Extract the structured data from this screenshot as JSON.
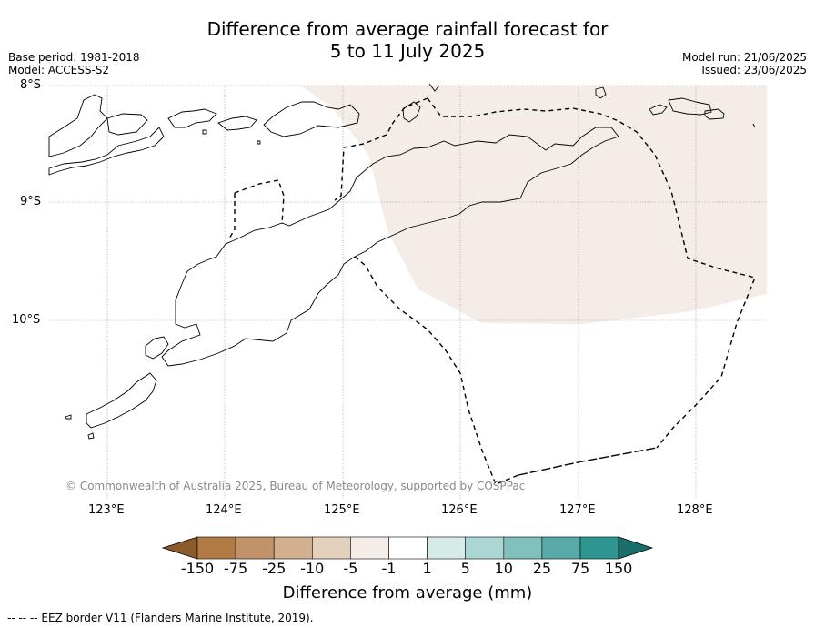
{
  "title": {
    "line1": "Difference from average rainfall forecast for",
    "line2": "5 to 11 July 2025"
  },
  "meta": {
    "base_period": "Base period: 1981-2018",
    "model": "Model: ACCESS-S2",
    "model_run": "Model run: 21/06/2025",
    "issued": "Issued: 23/06/2025"
  },
  "map": {
    "lat_labels": [
      "8°S",
      "9°S",
      "10°S"
    ],
    "lon_labels": [
      "123°E",
      "124°E",
      "125°E",
      "126°E",
      "127°E",
      "128°E"
    ],
    "shaded_category": "-5 to -1",
    "copyright": "© Commonwealth of Australia 2025, Bureau of Meteorology, supported by COSPPac"
  },
  "colorbar": {
    "labels": [
      "-150",
      "-75",
      "-25",
      "-10",
      "-5",
      "-1",
      "1",
      "5",
      "10",
      "25",
      "75",
      "150"
    ],
    "colors": [
      "#8c5a2b",
      "#b07b45",
      "#c29268",
      "#d2af8f",
      "#e3d0bd",
      "#f4ece6",
      "#ffffff",
      "#d5ebe8",
      "#acd6d3",
      "#82c0bd",
      "#57aaa7",
      "#2e9591",
      "#1a6e6a"
    ],
    "title": "Difference from average (mm)"
  },
  "footer": "--  --  -- EEZ border V11 (Flanders Marine Institute, 2019)."
}
